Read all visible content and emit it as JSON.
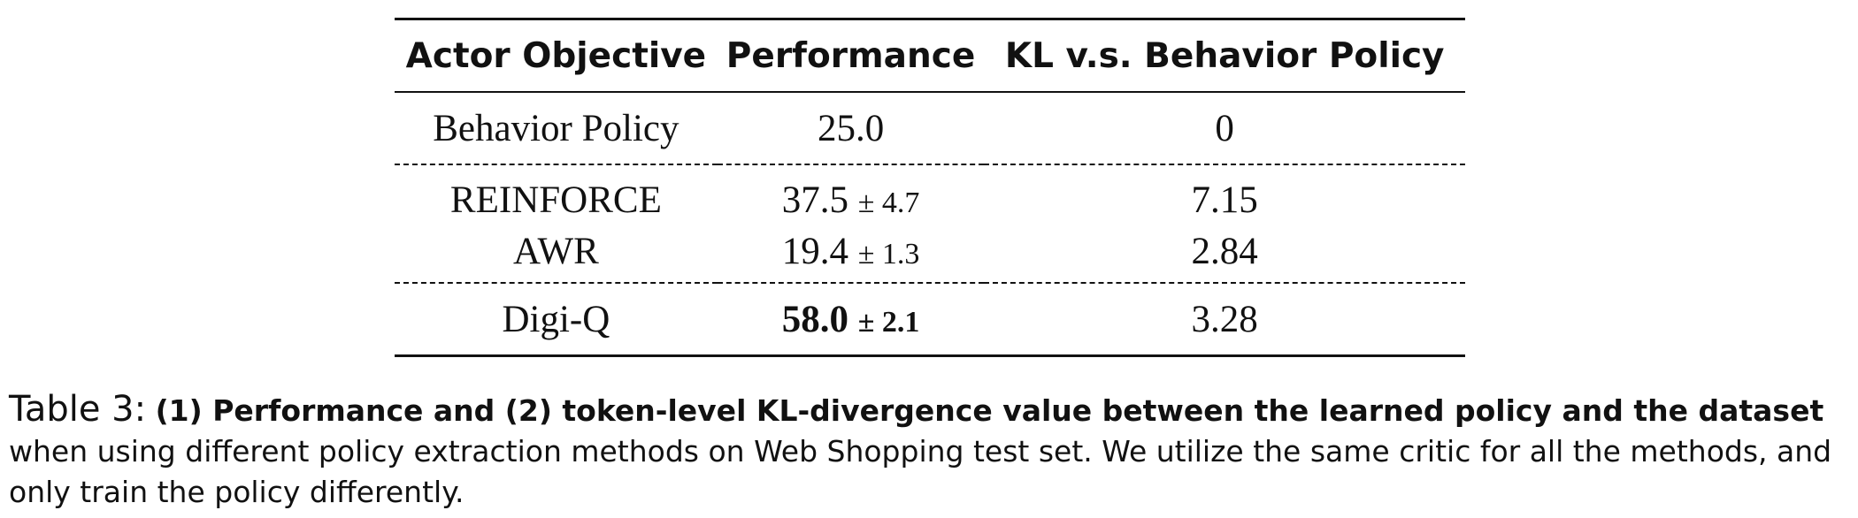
{
  "table": {
    "headers": [
      "Actor Objective",
      "Performance",
      "KL v.s. Behavior Policy"
    ],
    "rows": [
      {
        "objective": "Behavior Policy",
        "performance": "25.0",
        "std": "",
        "kl": "0"
      },
      {
        "objective": "REINFORCE",
        "performance": "37.5",
        "std": "± 4.7",
        "kl": "7.15"
      },
      {
        "objective": "AWR",
        "performance": "19.4",
        "std": "± 1.3",
        "kl": "2.84"
      },
      {
        "objective": "Digi-Q",
        "performance": "58.0",
        "std": "± 2.1",
        "kl": "3.28"
      }
    ]
  },
  "caption": {
    "label": "Table 3:",
    "bold_text": "(1) Performance and (2) token-level KL-divergence value between the learned policy and the dataset",
    "text": " when using different policy extraction methods on Web Shopping test set. We utilize the same critic for all the methods, and only train the policy differently."
  }
}
